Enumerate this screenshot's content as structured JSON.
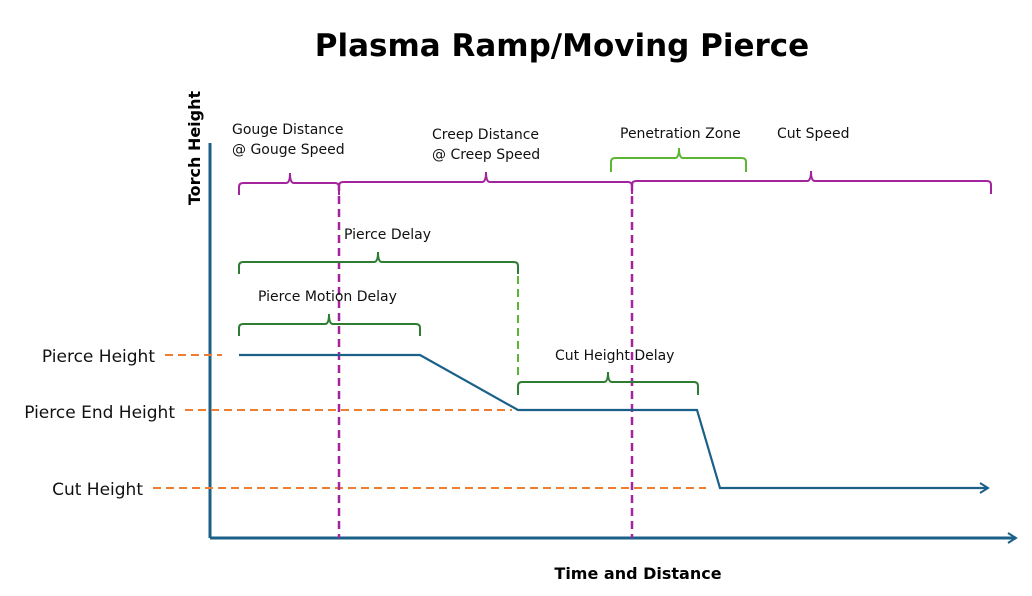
{
  "title": "Plasma Ramp/Moving Pierce",
  "axes": {
    "y_label": "Torch Height",
    "x_label": "Time and Distance"
  },
  "height_levels": [
    "Pierce Height",
    "Pierce End Height",
    "Cut Height"
  ],
  "spans": {
    "gouge": [
      "Gouge Distance",
      "@ Gouge Speed"
    ],
    "creep": [
      "Creep Distance",
      "@ Creep Speed"
    ],
    "penetration_zone": "Penetration Zone",
    "cut_speed": "Cut Speed",
    "pierce_delay": "Pierce Delay",
    "pierce_motion_delay": "Pierce Motion Delay",
    "cut_height_delay": "Cut Height Delay"
  },
  "colors": {
    "axis": "#1B6089",
    "profile": "#1B6089",
    "level_guides": "#ED7D31",
    "motion_braces": "#A3259E",
    "delay_braces": "#2E7D32",
    "penetration": "#5DB534"
  }
}
